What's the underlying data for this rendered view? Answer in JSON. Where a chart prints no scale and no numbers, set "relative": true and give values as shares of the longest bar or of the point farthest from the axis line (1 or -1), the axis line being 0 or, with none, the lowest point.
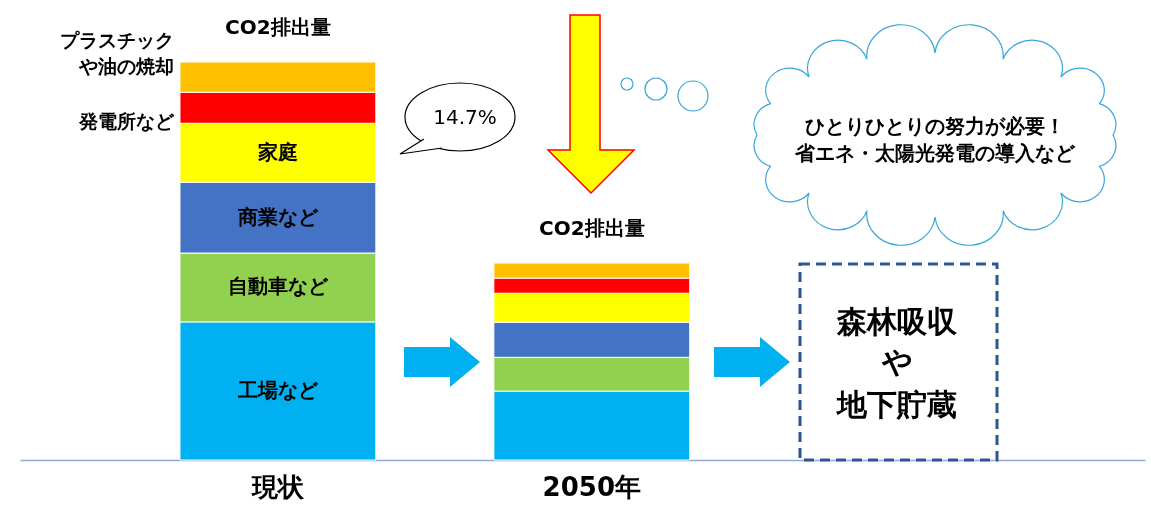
{
  "chart_data": {
    "type": "bar",
    "stacked": true,
    "relative": true,
    "legend": false,
    "grid": false,
    "categories": [
      "現状",
      "2050年"
    ],
    "series": [
      {
        "name": "工場など",
        "color": "#00b0f0",
        "values": [
          0.347,
          0.173
        ]
      },
      {
        "name": "自動車など",
        "color": "#92d050",
        "values": [
          0.173,
          0.085
        ]
      },
      {
        "name": "商業など",
        "color": "#4472c4",
        "values": [
          0.178,
          0.088
        ]
      },
      {
        "name": "家庭",
        "color": "#ffff00",
        "values": [
          0.148,
          0.073
        ]
      },
      {
        "name": "発電所など",
        "color": "#ff0000",
        "values": [
          0.078,
          0.038
        ]
      },
      {
        "name": "プラスチックや油の焼却",
        "color": "#ffc000",
        "values": [
          0.076,
          0.038
        ]
      }
    ],
    "annotations": [
      {
        "text": "CO2排出量",
        "x": "現状",
        "y": 1.0
      },
      {
        "text": "CO2排出量",
        "x": "2050年",
        "y": 0.495
      },
      "14.7%",
      "ひとりひとりの努力が必要！",
      "省エネ・太陽光発電の導入など",
      "森林吸収",
      "や",
      "地下貯蔵"
    ]
  }
}
